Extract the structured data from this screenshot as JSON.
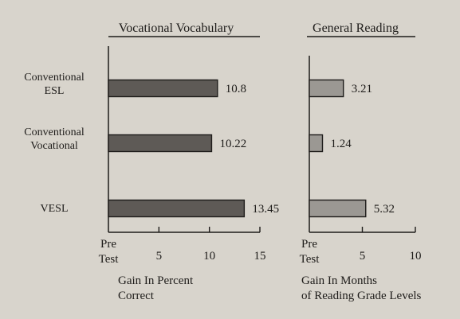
{
  "colors": {
    "background": "#d8d4cc",
    "ink": "#1e1c1a",
    "bar_vocab": "#5e5a56",
    "bar_reading": "#9b9893"
  },
  "chart_data": [
    {
      "type": "bar",
      "orientation": "horizontal",
      "title": "Vocational Vocabulary",
      "xlabel": "Gain In Percent Correct",
      "xlabel_lines": [
        "Gain In Percent",
        "Correct"
      ],
      "categories": [
        "Conventional ESL",
        "Conventional Vocational",
        "VESL"
      ],
      "category_lines": [
        [
          "Conventional",
          "ESL"
        ],
        [
          "Conventional",
          "Vocational"
        ],
        [
          "VESL"
        ]
      ],
      "values": [
        10.8,
        10.22,
        13.45
      ],
      "value_labels": [
        "10.8",
        "10.22",
        "13.45"
      ],
      "xlim": [
        0,
        15
      ],
      "ticks": [
        0,
        5,
        10,
        15
      ],
      "tick_labels": [
        [
          "Pre",
          "Test"
        ],
        [
          "5"
        ],
        [
          "10"
        ],
        [
          "15"
        ]
      ],
      "grid": false,
      "bar_color": "#5e5a56"
    },
    {
      "type": "bar",
      "orientation": "horizontal",
      "title": "General Reading",
      "xlabel": "Gain In Months of Reading Grade Levels",
      "xlabel_lines": [
        "Gain In Months",
        "of Reading Grade Levels"
      ],
      "categories": [
        "Conventional ESL",
        "Conventional Vocational",
        "VESL"
      ],
      "values": [
        3.21,
        1.24,
        5.32
      ],
      "value_labels": [
        "3.21",
        "1.24",
        "5.32"
      ],
      "xlim": [
        0,
        10
      ],
      "ticks": [
        0,
        5,
        10
      ],
      "tick_labels": [
        [
          "Pre",
          "Test"
        ],
        [
          "5"
        ],
        [
          "10"
        ]
      ],
      "grid": false,
      "bar_color": "#9b9893"
    }
  ]
}
